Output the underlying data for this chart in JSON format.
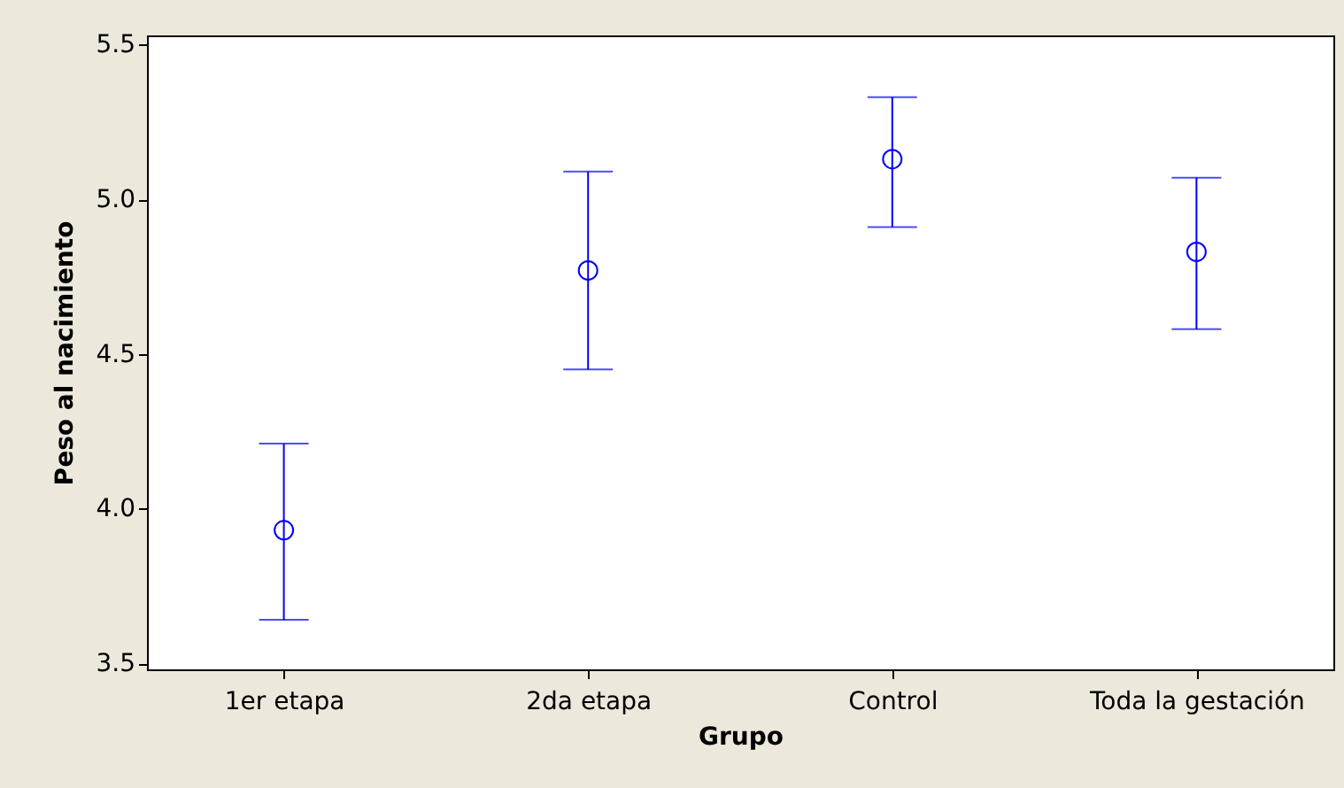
{
  "chart_data": {
    "type": "scatter",
    "xlabel": "Grupo",
    "ylabel": "Peso al nacimiento",
    "categories": [
      "1er etapa",
      "2da etapa",
      "Control",
      "Toda la gestación"
    ],
    "series": [
      {
        "color": "#0000ff",
        "values": [
          3.93,
          4.77,
          5.13,
          4.83
        ],
        "errors": [
          [
            3.64,
            4.21
          ],
          [
            4.45,
            5.09
          ],
          [
            4.91,
            5.33
          ],
          [
            4.58,
            5.07
          ]
        ]
      }
    ],
    "ylim": [
      3.48,
      5.53
    ],
    "yticks": [
      3.5,
      {
        "value": 4,
        "label": "4.0"
      },
      4.5,
      {
        "value": 5,
        "label": "5.0"
      },
      5.5
    ],
    "grid": false,
    "marker": "circle"
  }
}
